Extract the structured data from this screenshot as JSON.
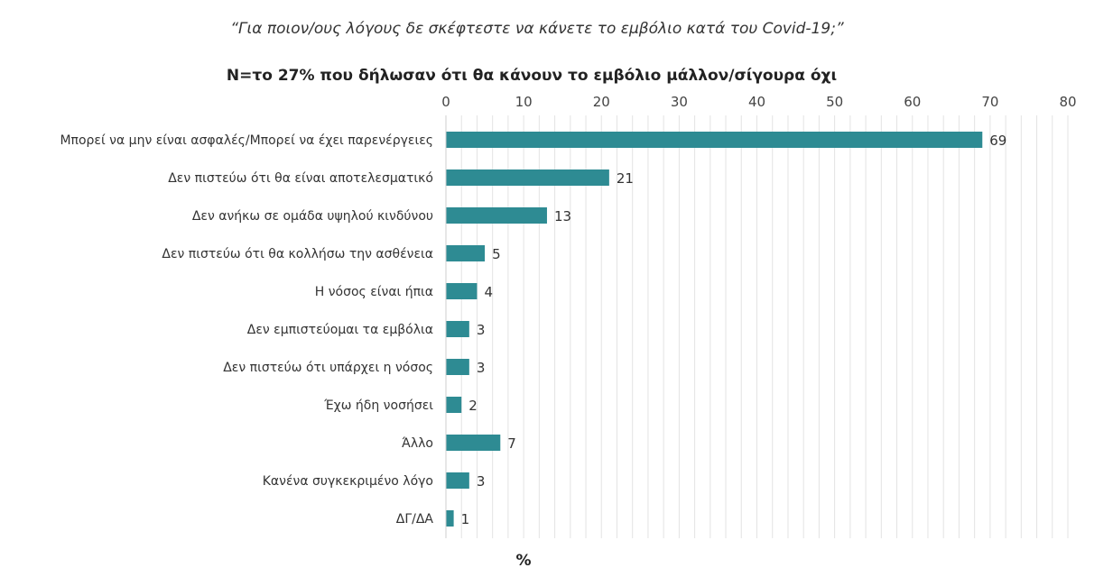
{
  "chart_data": {
    "type": "bar",
    "orientation": "horizontal",
    "title": "“Για ποιον/ους λόγους δε σκέφτεστε να κάνετε το εμβόλιο κατά του Covid-19;”",
    "subtitle": "N=το 27% που δήλωσαν ότι θα κάνουν το εμβόλιο μάλλον/σίγουρα όχι",
    "xlabel": "%",
    "ylabel": "",
    "xlim": [
      0,
      80
    ],
    "ticks": [
      "0",
      "10",
      "20",
      "30",
      "40",
      "50",
      "60",
      "70",
      "80"
    ],
    "grid": true,
    "categories": [
      "Μπορεί να μην είναι ασφαλές/Μπορεί να έχει παρενέργειες",
      "Δεν πιστεύω ότι θα είναι αποτελεσματικό",
      "Δεν ανήκω σε ομάδα υψηλού κινδύνου",
      "Δεν πιστεύω ότι θα κολλήσω την ασθένεια",
      "Η νόσος είναι ήπια",
      "Δεν εμπιστεύομαι τα εμβόλια",
      "Δεν πιστεύω ότι υπάρχει η νόσος",
      "Έχω ήδη νοσήσει",
      "Άλλο",
      "Κανένα συγκεκριμένο λόγο",
      "ΔΓ/ΔΑ"
    ],
    "values": [
      69,
      21,
      13,
      5,
      4,
      3,
      3,
      2,
      7,
      3,
      1
    ],
    "bar_color": "#2e8b93",
    "grid_color": "#e3e3e3"
  }
}
